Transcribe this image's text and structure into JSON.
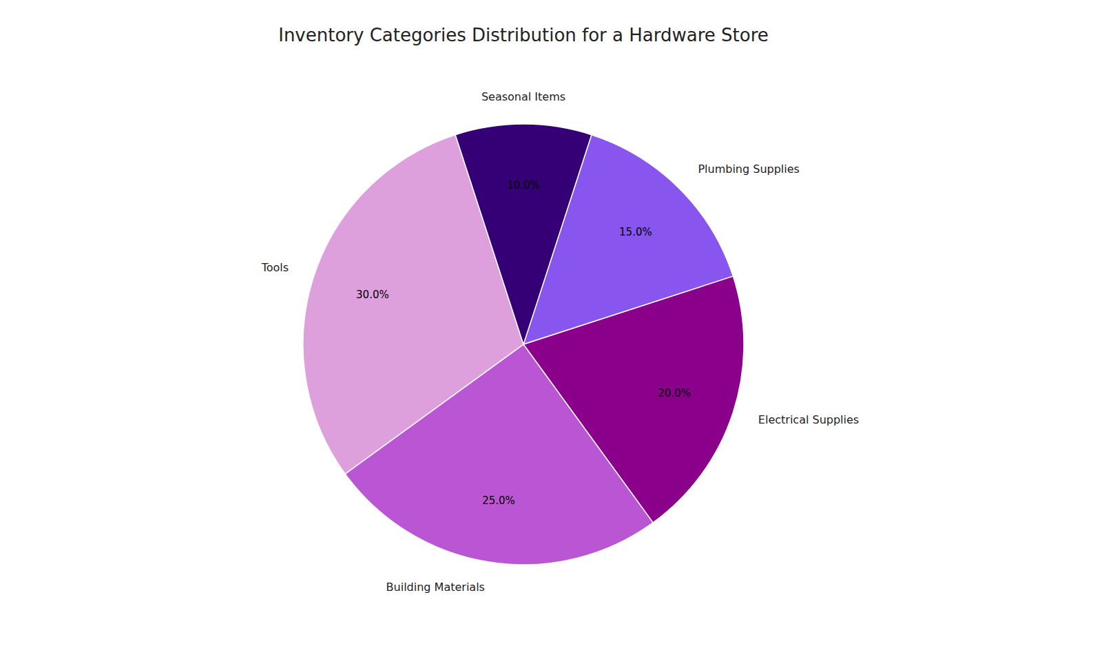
{
  "chart_data": {
    "type": "pie",
    "title": "Inventory Categories Distribution for a Hardware Store",
    "categories": [
      "Plumbing Supplies",
      "Electrical Supplies",
      "Building Materials",
      "Tools",
      "Seasonal Items"
    ],
    "values": [
      15.0,
      20.0,
      25.0,
      30.0,
      10.0
    ],
    "value_labels": [
      "15.0%",
      "20.0%",
      "25.0%",
      "30.0%",
      "10.0%"
    ],
    "colors": [
      "#8855EE",
      "#8B008B",
      "#BA55D3",
      "#DDA0DD",
      "#350075"
    ],
    "data_labels": true
  }
}
